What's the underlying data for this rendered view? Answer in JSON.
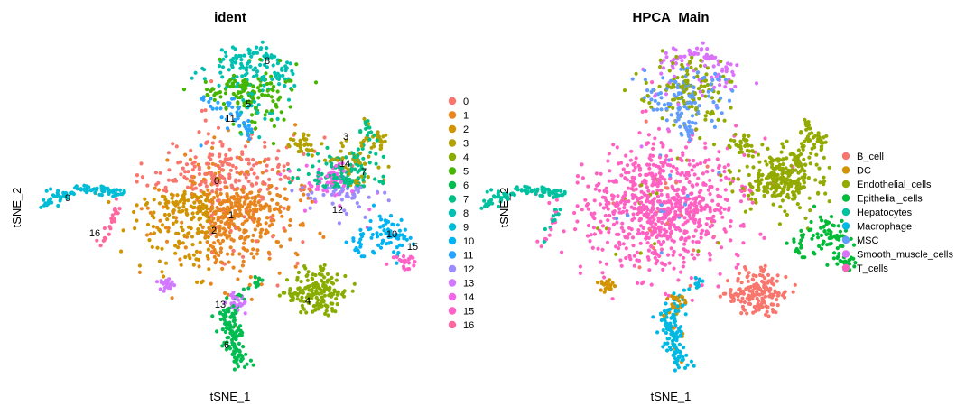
{
  "chart_data": [
    {
      "type": "scatter",
      "title": "ident",
      "xlabel": "tSNE_1",
      "ylabel": "tSNE_2",
      "grid": false,
      "legend_position": "right",
      "legend": [
        {
          "label": "0",
          "color": "#F8766D"
        },
        {
          "label": "1",
          "color": "#E7851E"
        },
        {
          "label": "2",
          "color": "#D09400"
        },
        {
          "label": "3",
          "color": "#B2A100"
        },
        {
          "label": "4",
          "color": "#89AC00"
        },
        {
          "label": "5",
          "color": "#45B500"
        },
        {
          "label": "6",
          "color": "#00BC51"
        },
        {
          "label": "7",
          "color": "#00C087"
        },
        {
          "label": "8",
          "color": "#00C0B2"
        },
        {
          "label": "9",
          "color": "#00BCD6"
        },
        {
          "label": "10",
          "color": "#00B3F2"
        },
        {
          "label": "11",
          "color": "#29A3FF"
        },
        {
          "label": "12",
          "color": "#9C8DFF"
        },
        {
          "label": "13",
          "color": "#D277FF"
        },
        {
          "label": "14",
          "color": "#F166E8"
        },
        {
          "label": "15",
          "color": "#FF61C7"
        },
        {
          "label": "16",
          "color": "#FF689E"
        }
      ],
      "cluster_labels": [
        "0",
        "1",
        "2",
        "3",
        "4",
        "5",
        "6",
        "7",
        "8",
        "9",
        "10",
        "11",
        "12",
        "13",
        "14",
        "15",
        "16"
      ]
    },
    {
      "type": "scatter",
      "title": "HPCA_Main",
      "xlabel": "tSNE_1",
      "ylabel": "tSNE_2",
      "grid": false,
      "legend_position": "right",
      "legend": [
        {
          "label": "B_cell",
          "color": "#F8766D"
        },
        {
          "label": "DC",
          "color": "#D39200"
        },
        {
          "label": "Endothelial_cells",
          "color": "#93AA00"
        },
        {
          "label": "Epithelial_cells",
          "color": "#00BA38"
        },
        {
          "label": "Hepatocytes",
          "color": "#00C19F"
        },
        {
          "label": "Macrophage",
          "color": "#00B9E3"
        },
        {
          "label": "MSC",
          "color": "#619CFF"
        },
        {
          "label": "Smooth_muscle_cells",
          "color": "#DB72FB"
        },
        {
          "label": "T_cells",
          "color": "#FF61C3"
        }
      ]
    }
  ]
}
